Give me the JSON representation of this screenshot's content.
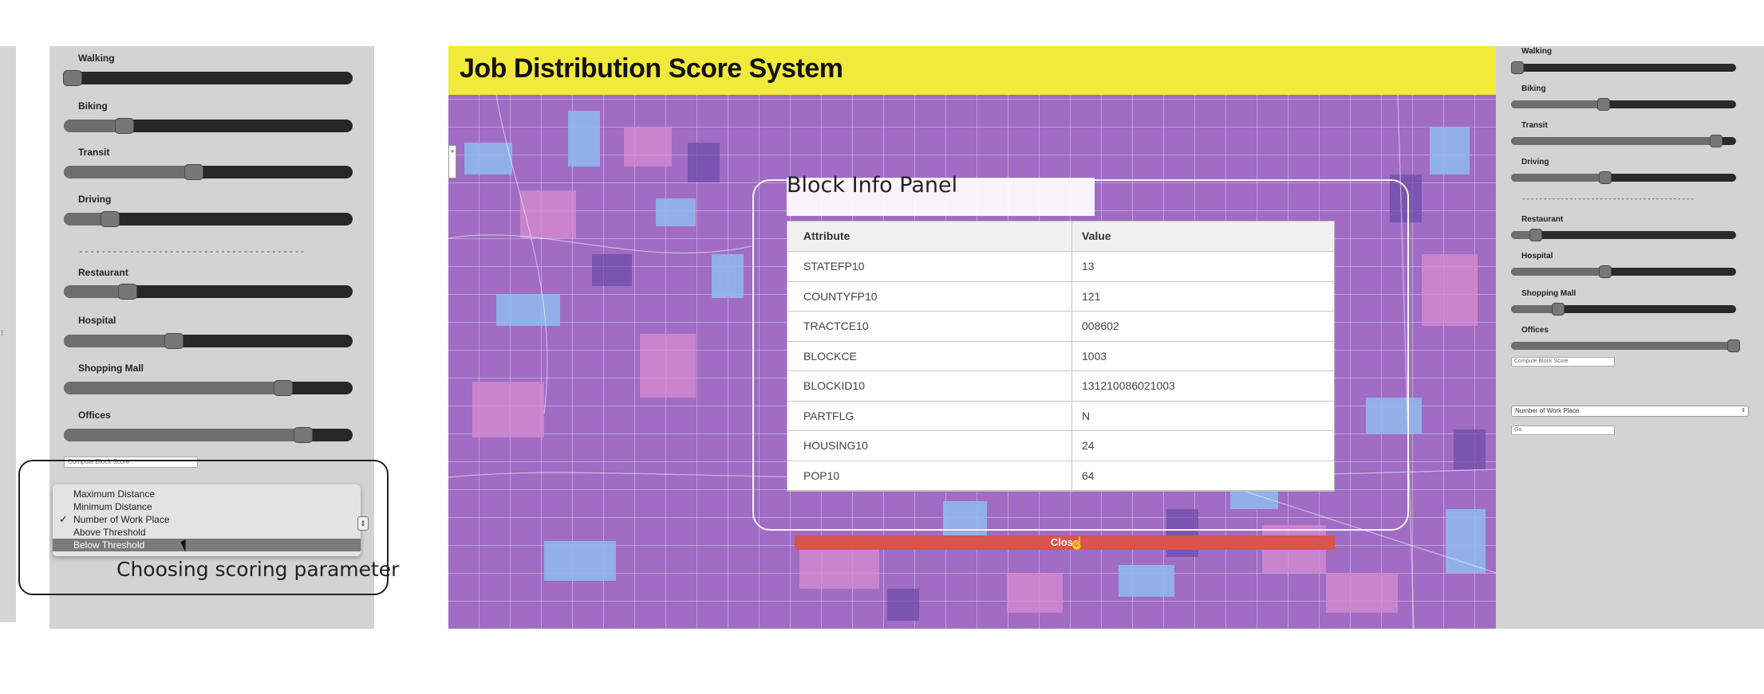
{
  "left_panel": {
    "sliders": [
      {
        "label": "Walking",
        "value": 0.03
      },
      {
        "label": "Biking",
        "value": 0.21
      },
      {
        "label": "Transit",
        "value": 0.45
      },
      {
        "label": "Driving",
        "value": 0.16
      },
      {
        "label": "Restaurant",
        "value": 0.22
      },
      {
        "label": "Hospital",
        "value": 0.38
      },
      {
        "label": "Shopping Mall",
        "value": 0.76
      },
      {
        "label": "Offices",
        "value": 0.83
      }
    ],
    "divider": "----------------------------------------",
    "compute_button": "Compute Block Score"
  },
  "dropdown": {
    "options": [
      {
        "label": "Maximum Distance",
        "checked": false,
        "highlighted": false
      },
      {
        "label": "Minimum Distance",
        "checked": false,
        "highlighted": false
      },
      {
        "label": "Number of Work Place",
        "checked": true,
        "highlighted": false
      },
      {
        "label": "Above Threshold",
        "checked": false,
        "highlighted": false
      },
      {
        "label": "Below Threshold",
        "checked": false,
        "highlighted": true
      }
    ],
    "check_mark": "✓",
    "arrow": "⇕"
  },
  "annotation": {
    "text": "Choosing scoring parameter"
  },
  "main": {
    "title": "Job Distribution Score System",
    "title_bar_color": "#f2ea3a",
    "map_control": "+",
    "info_panel": {
      "title": "Block Info Panel",
      "header": {
        "attribute": "Attribute",
        "value": "Value"
      },
      "rows": [
        {
          "attribute": "STATEFP10",
          "value": "13"
        },
        {
          "attribute": "COUNTYFP10",
          "value": "121"
        },
        {
          "attribute": "TRACTCE10",
          "value": "008602"
        },
        {
          "attribute": "BLOCKCE",
          "value": "1003"
        },
        {
          "attribute": "BLOCKID10",
          "value": "131210086021003"
        },
        {
          "attribute": "PARTFLG",
          "value": "N"
        },
        {
          "attribute": "HOUSING10",
          "value": "24"
        },
        {
          "attribute": "POP10",
          "value": "64"
        }
      ],
      "close_label": "Close",
      "close_color": "#d9534f"
    }
  },
  "right_panel": {
    "sliders": [
      {
        "label": "Walking",
        "value": 0.03
      },
      {
        "label": "Biking",
        "value": 0.41
      },
      {
        "label": "Transit",
        "value": 0.91
      },
      {
        "label": "Driving",
        "value": 0.42
      },
      {
        "label": "Restaurant",
        "value": 0.11
      },
      {
        "label": "Hospital",
        "value": 0.42
      },
      {
        "label": "Shopping Mall",
        "value": 0.21
      },
      {
        "label": "Offices",
        "value": 0.99
      }
    ],
    "divider": "----------------------------------------",
    "compute_button": "Compute Block Score",
    "select_value": "Number of Work Place",
    "select_arrow": "⇕",
    "go_button": "Go"
  }
}
